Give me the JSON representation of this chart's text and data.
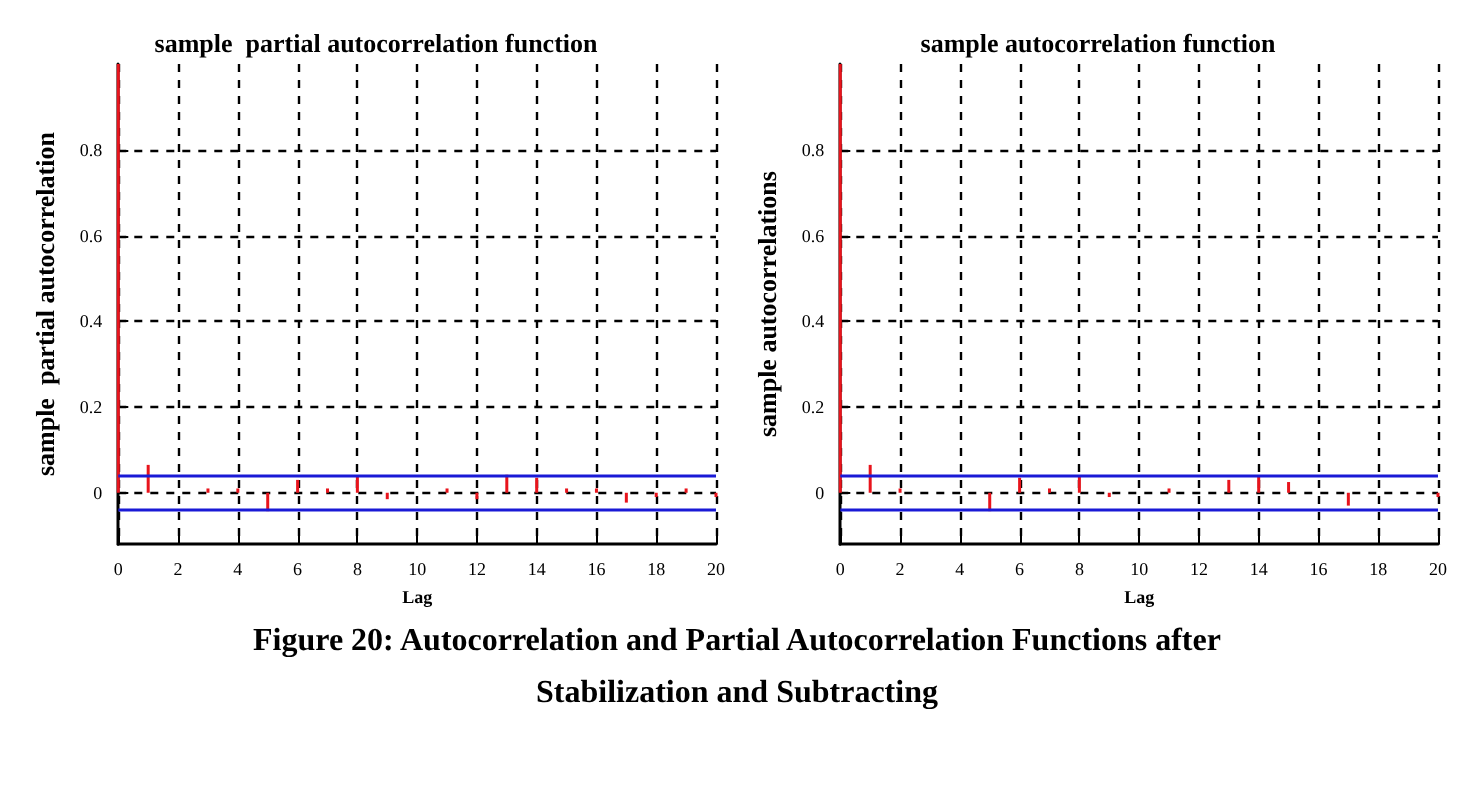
{
  "chart_data": [
    {
      "type": "bar",
      "title": "sample  partial autocorrelation function",
      "xlabel": "Lag",
      "ylabel": "sample  partial autocorrelation",
      "x": [
        0,
        1,
        2,
        3,
        4,
        5,
        6,
        7,
        8,
        9,
        10,
        11,
        12,
        13,
        14,
        15,
        16,
        17,
        18,
        19,
        20
      ],
      "values": [
        1,
        0.065,
        0,
        0.01,
        0.01,
        -0.043,
        0.03,
        0.01,
        0.04,
        -0.015,
        0,
        0.01,
        -0.015,
        0.042,
        0.035,
        0.01,
        0.01,
        -0.023,
        -0.01,
        0.01,
        -0.01
      ],
      "color": "#e8141c",
      "xlim": [
        0,
        20
      ],
      "xticks": [
        0,
        2,
        4,
        6,
        8,
        10,
        12,
        14,
        16,
        18,
        20
      ],
      "ylim": [
        -0.12,
        1
      ],
      "yticks": [
        0,
        0.2,
        0.4,
        0.6,
        0.8
      ],
      "grid": true,
      "ref_lines": [
        {
          "axis": "y",
          "value": 0.044,
          "color": "#1a1ad6"
        },
        {
          "axis": "y",
          "value": -0.044,
          "color": "#1a1ad6"
        }
      ],
      "annotations": [
        "Figure 20: Autocorrelation and Partial Autocorrelation Functions after Stabilization and Subtracting"
      ]
    },
    {
      "type": "bar",
      "title": "sample autocorrelation function",
      "xlabel": "Lag",
      "ylabel": "sample autocorrelations",
      "x": [
        0,
        1,
        2,
        3,
        4,
        5,
        6,
        7,
        8,
        9,
        10,
        11,
        12,
        13,
        14,
        15,
        16,
        17,
        18,
        19,
        20
      ],
      "values": [
        1,
        0.065,
        0.01,
        0,
        0,
        -0.043,
        0.035,
        0.01,
        0.04,
        -0.01,
        0,
        0.01,
        0,
        0.03,
        0.04,
        0.025,
        0,
        -0.03,
        0,
        0,
        -0.01
      ],
      "color": "#e8141c",
      "xlim": [
        0,
        20
      ],
      "xticks": [
        0,
        2,
        4,
        6,
        8,
        10,
        12,
        14,
        16,
        18,
        20
      ],
      "ylim": [
        -0.12,
        1
      ],
      "yticks": [
        0,
        0.2,
        0.4,
        0.6,
        0.8
      ],
      "grid": true,
      "ref_lines": [
        {
          "axis": "y",
          "value": 0.045,
          "color": "#1a1ad6"
        },
        {
          "axis": "y",
          "value": -0.045,
          "color": "#1a1ad6"
        }
      ]
    }
  ]
}
